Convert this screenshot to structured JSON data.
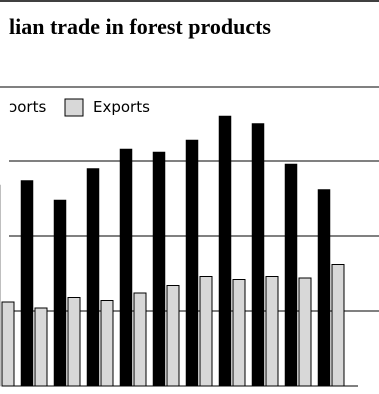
{
  "chart_data": {
    "type": "bar",
    "title": "lian trade in forest products",
    "legend": {
      "placement": "top-left",
      "entries": [
        {
          "label": "Imports",
          "visible_text": "ɔorts",
          "color": "#000000"
        },
        {
          "label": "Exports",
          "visible_text": "Exports",
          "color": "#d8d8d8"
        }
      ]
    },
    "grid": true,
    "ylim": [
      0,
      200
    ],
    "yticks": [
      0,
      50,
      100,
      150,
      200
    ],
    "series": [
      {
        "name": "Imports",
        "color": "#000000",
        "values": [
          134,
          137,
          124,
          145,
          158,
          156,
          164,
          180,
          175,
          148,
          131
        ]
      },
      {
        "name": "Exports",
        "color": "#d8d8d8",
        "values": [
          56,
          52,
          59,
          57,
          62,
          67,
          73,
          71,
          73,
          72,
          81
        ]
      }
    ]
  }
}
